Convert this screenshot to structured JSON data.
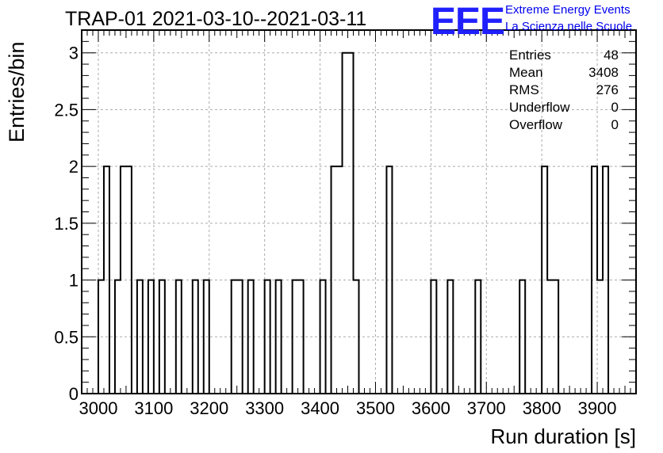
{
  "chart_data": {
    "type": "histogram",
    "title": "TRAP-01 2021-03-10--2021-03-11",
    "xlabel": "Run duration [s]",
    "ylabel": "Entries/bin",
    "xlim": [
      2970,
      3970
    ],
    "ylim": [
      0,
      3.2
    ],
    "bin_width": 10,
    "x_ticks": [
      3000,
      3100,
      3200,
      3300,
      3400,
      3500,
      3600,
      3700,
      3800,
      3900
    ],
    "y_ticks": [
      0,
      0.5,
      1,
      1.5,
      2,
      2.5,
      3
    ],
    "y_tick_labels": [
      "0",
      "0.5",
      "1",
      "1.5",
      "2",
      "2.5",
      "3"
    ],
    "grid": true,
    "bins": [
      {
        "x": 3000,
        "value": 1
      },
      {
        "x": 3010,
        "value": 2
      },
      {
        "x": 3030,
        "value": 1
      },
      {
        "x": 3040,
        "value": 2
      },
      {
        "x": 3050,
        "value": 2
      },
      {
        "x": 3070,
        "value": 1
      },
      {
        "x": 3090,
        "value": 1
      },
      {
        "x": 3110,
        "value": 1
      },
      {
        "x": 3140,
        "value": 1
      },
      {
        "x": 3170,
        "value": 1
      },
      {
        "x": 3190,
        "value": 1
      },
      {
        "x": 3240,
        "value": 1
      },
      {
        "x": 3250,
        "value": 1
      },
      {
        "x": 3270,
        "value": 1
      },
      {
        "x": 3300,
        "value": 1
      },
      {
        "x": 3320,
        "value": 1
      },
      {
        "x": 3350,
        "value": 1
      },
      {
        "x": 3360,
        "value": 1
      },
      {
        "x": 3400,
        "value": 1
      },
      {
        "x": 3420,
        "value": 2
      },
      {
        "x": 3430,
        "value": 2
      },
      {
        "x": 3440,
        "value": 3
      },
      {
        "x": 3450,
        "value": 3
      },
      {
        "x": 3460,
        "value": 1
      },
      {
        "x": 3520,
        "value": 2
      },
      {
        "x": 3600,
        "value": 1
      },
      {
        "x": 3630,
        "value": 1
      },
      {
        "x": 3680,
        "value": 1
      },
      {
        "x": 3760,
        "value": 1
      },
      {
        "x": 3800,
        "value": 2
      },
      {
        "x": 3810,
        "value": 1
      },
      {
        "x": 3820,
        "value": 1
      },
      {
        "x": 3890,
        "value": 2
      },
      {
        "x": 3900,
        "value": 1
      },
      {
        "x": 3910,
        "value": 2
      }
    ],
    "stats": [
      {
        "label": "Entries",
        "value": "48"
      },
      {
        "label": "Mean",
        "value": "3408"
      },
      {
        "label": "RMS",
        "value": "276"
      },
      {
        "label": "Underflow",
        "value": "0"
      },
      {
        "label": "Overflow",
        "value": "0"
      }
    ]
  },
  "logo": {
    "text": "EEE",
    "line1": "Extreme Energy Events",
    "line2": "La Scienza nelle Scuole",
    "color": "#2020ff"
  }
}
